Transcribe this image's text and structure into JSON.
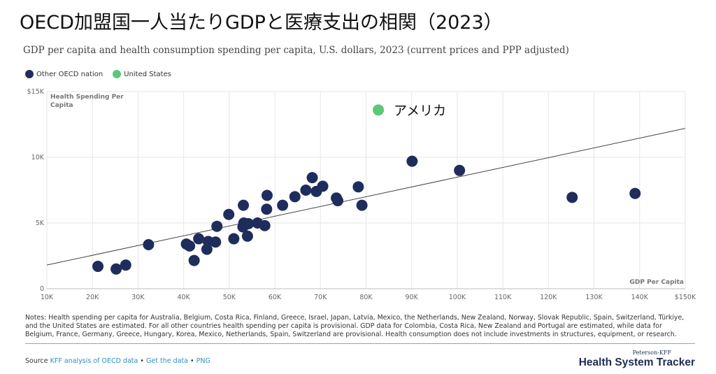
{
  "header": {
    "title": "OECD加盟国一人当たりGDPと医療支出の相関（2023）",
    "subtitle": "GDP per capita and health consumption spending per capita, U.S. dollars, 2023 (current prices and PPP adjusted)"
  },
  "legend": {
    "items": [
      {
        "label": "Other OECD nation",
        "color": "#1f2d5c"
      },
      {
        "label": "United States",
        "color": "#5cc775"
      }
    ]
  },
  "chart_data": {
    "type": "scatter",
    "xlabel": "GDP Per Capita",
    "ylabel": "Health Spending Per Capita",
    "xlim": [
      10000,
      150000
    ],
    "ylim": [
      0,
      15000
    ],
    "x_ticks": [
      "10K",
      "20K",
      "30K",
      "40K",
      "50K",
      "60K",
      "70K",
      "80K",
      "90K",
      "100K",
      "110K",
      "120K",
      "130K",
      "140K",
      "$150K"
    ],
    "y_ticks": [
      {
        "value": 0,
        "label": "0"
      },
      {
        "value": 5000,
        "label": "5K"
      },
      {
        "value": 10000,
        "label": "10K"
      },
      {
        "value": 15000,
        "label": "$15K"
      }
    ],
    "grid": true,
    "legend_position": "top-left",
    "trendline": {
      "x1": 10000,
      "y1": 1800,
      "x2": 150000,
      "y2": 12200
    },
    "series": [
      {
        "name": "Other OECD nation",
        "color": "#1f2d5c",
        "points": [
          [
            21200,
            1700
          ],
          [
            25200,
            1500
          ],
          [
            27300,
            1800
          ],
          [
            32300,
            3350
          ],
          [
            40600,
            3400
          ],
          [
            41300,
            3250
          ],
          [
            42300,
            2150
          ],
          [
            43300,
            3800
          ],
          [
            45100,
            3000
          ],
          [
            45400,
            3600
          ],
          [
            47000,
            3550
          ],
          [
            47300,
            4750
          ],
          [
            49900,
            5650
          ],
          [
            51000,
            3800
          ],
          [
            53000,
            4700
          ],
          [
            53100,
            6350
          ],
          [
            53200,
            5000
          ],
          [
            54000,
            4000
          ],
          [
            54200,
            4950
          ],
          [
            56200,
            5000
          ],
          [
            57800,
            4800
          ],
          [
            58200,
            6050
          ],
          [
            58300,
            7100
          ],
          [
            61700,
            6350
          ],
          [
            64400,
            7000
          ],
          [
            66800,
            7500
          ],
          [
            68200,
            8450
          ],
          [
            69100,
            7400
          ],
          [
            70500,
            7800
          ],
          [
            73500,
            6900
          ],
          [
            73800,
            6700
          ],
          [
            78300,
            7750
          ],
          [
            79100,
            6350
          ],
          [
            90100,
            9700
          ],
          [
            100500,
            9000
          ],
          [
            125200,
            6950
          ],
          [
            139000,
            7250
          ]
        ]
      },
      {
        "name": "United States",
        "color": "#5cc775",
        "points": [
          [
            82700,
            13600
          ]
        ]
      }
    ],
    "annotations": [
      {
        "text": "アメリカ",
        "x": 82700,
        "y": 13600
      }
    ]
  },
  "footer": {
    "notes": "Notes: Health spending per capita for Australia, Belgium, Costa Rica, Finland, Greece, Israel, Japan, Latvia, Mexico, the Netherlands, New Zealand, Norway, Slovak Republic, Spain, Switzerland, Türkiye, and the United States are estimated. For all other countries health spending per capita is provisional. GDP data for Colombia, Costa Rica, New Zealand and Portugal are estimated, while data for Belgium, France, Germany, Greece, Hungary, Korea, Mexico, Netherlands, Spain, Switzerland are provisional. Health consumption does not include investments in structures, equipment, or research.",
    "source_label": "Source",
    "source_link": "KFF analysis of OECD data",
    "sep": "•",
    "get_data": "Get the data",
    "png": "PNG",
    "brand_small": "Peterson-KFF",
    "brand_big": "Health System Tracker"
  }
}
